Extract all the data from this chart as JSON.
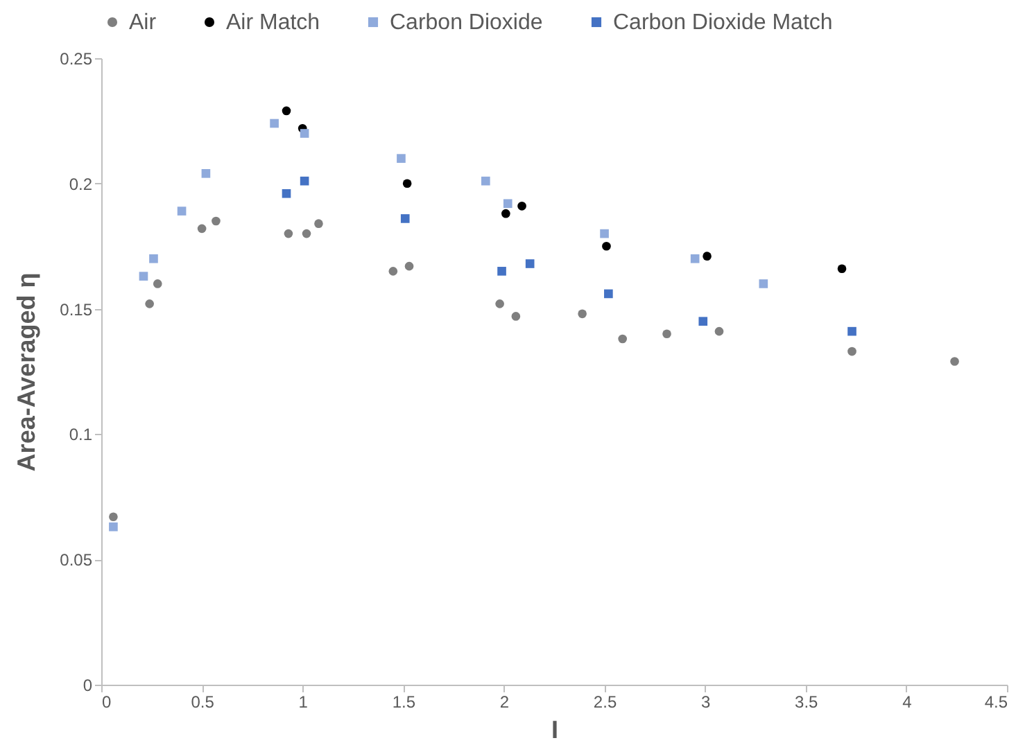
{
  "chart_data": {
    "type": "scatter",
    "xlabel": "I",
    "ylabel": "Area-Averaged η",
    "xlim": [
      0,
      4.5
    ],
    "xticks": [
      0,
      0.5,
      1,
      1.5,
      2,
      2.5,
      3,
      3.5,
      4,
      4.5
    ],
    "ylim": [
      0,
      0.25
    ],
    "yticks": [
      0,
      0.05,
      0.1,
      0.15,
      0.2,
      0.25
    ],
    "grid": false,
    "legend": "top",
    "series": [
      {
        "name": "Air",
        "color": "#7f7f7f",
        "marker": "circle",
        "x": [
          0.06,
          0.24,
          0.28,
          0.5,
          0.57,
          0.93,
          1.02,
          1.08,
          1.45,
          1.53,
          1.98,
          2.06,
          2.39,
          2.59,
          2.81,
          3.07,
          3.73,
          4.24
        ],
        "values": [
          0.067,
          0.152,
          0.16,
          0.182,
          0.185,
          0.18,
          0.18,
          0.184,
          0.165,
          0.167,
          0.152,
          0.147,
          0.148,
          0.138,
          0.14,
          0.141,
          0.133,
          0.129
        ]
      },
      {
        "name": "Air Match",
        "color": "#000000",
        "marker": "circle",
        "x": [
          0.92,
          1.0,
          1.52,
          2.01,
          2.09,
          2.51,
          3.01,
          3.68
        ],
        "values": [
          0.229,
          0.222,
          0.2,
          0.188,
          0.191,
          0.175,
          0.171,
          0.166
        ]
      },
      {
        "name": "Carbon Dioxide",
        "color": "#8faadc",
        "marker": "square",
        "x": [
          0.06,
          0.21,
          0.26,
          0.4,
          0.52,
          0.86,
          1.01,
          1.49,
          1.91,
          2.02,
          2.5,
          2.95,
          3.29
        ],
        "values": [
          0.063,
          0.163,
          0.17,
          0.189,
          0.204,
          0.224,
          0.22,
          0.21,
          0.201,
          0.192,
          0.18,
          0.17,
          0.16
        ]
      },
      {
        "name": "Carbon Dioxide Match",
        "color": "#4472c4",
        "marker": "square",
        "x": [
          0.92,
          1.01,
          1.51,
          1.99,
          2.13,
          2.52,
          2.99,
          3.73
        ],
        "values": [
          0.196,
          0.201,
          0.186,
          0.165,
          0.168,
          0.156,
          0.145,
          0.141
        ]
      }
    ]
  }
}
